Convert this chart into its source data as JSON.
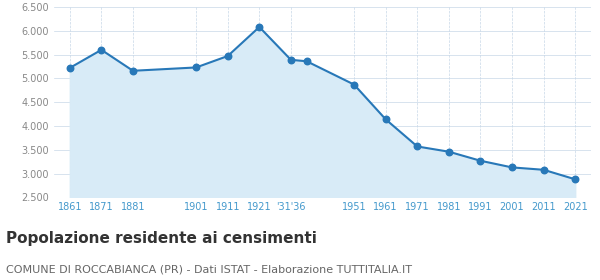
{
  "years": [
    1861,
    1871,
    1881,
    1901,
    1911,
    1921,
    1931,
    1936,
    1951,
    1961,
    1971,
    1981,
    1991,
    2001,
    2011,
    2021
  ],
  "population": [
    5220,
    5600,
    5160,
    5230,
    5470,
    6080,
    5390,
    5360,
    4870,
    4140,
    3570,
    3460,
    3270,
    3130,
    3080,
    2880
  ],
  "xtick_years": [
    1861,
    1871,
    1881,
    1901,
    1911,
    1921,
    1931,
    1951,
    1961,
    1971,
    1981,
    1991,
    2001,
    2011,
    2021
  ],
  "xtick_labels": [
    "1861",
    "1871",
    "1881",
    "1901",
    "1911",
    "1921",
    "'31'36",
    "1951",
    "1961",
    "1971",
    "1981",
    "1991",
    "2001",
    "2011",
    "2021"
  ],
  "line_color": "#2878b8",
  "fill_color": "#d8ebf7",
  "marker_color": "#2878b8",
  "background_color": "#ffffff",
  "grid_color": "#c8d8e8",
  "title": "Popolazione residente ai censimenti",
  "subtitle": "COMUNE DI ROCCABIANCA (PR) - Dati ISTAT - Elaborazione TUTTITALIA.IT",
  "title_fontsize": 11,
  "subtitle_fontsize": 8,
  "ylim": [
    2500,
    6500
  ],
  "xlim": [
    1856,
    2026
  ],
  "yticks": [
    2500,
    3000,
    3500,
    4000,
    4500,
    5000,
    5500,
    6000,
    6500
  ],
  "tick_label_color": "#888888",
  "axis_label_color": "#4499cc"
}
